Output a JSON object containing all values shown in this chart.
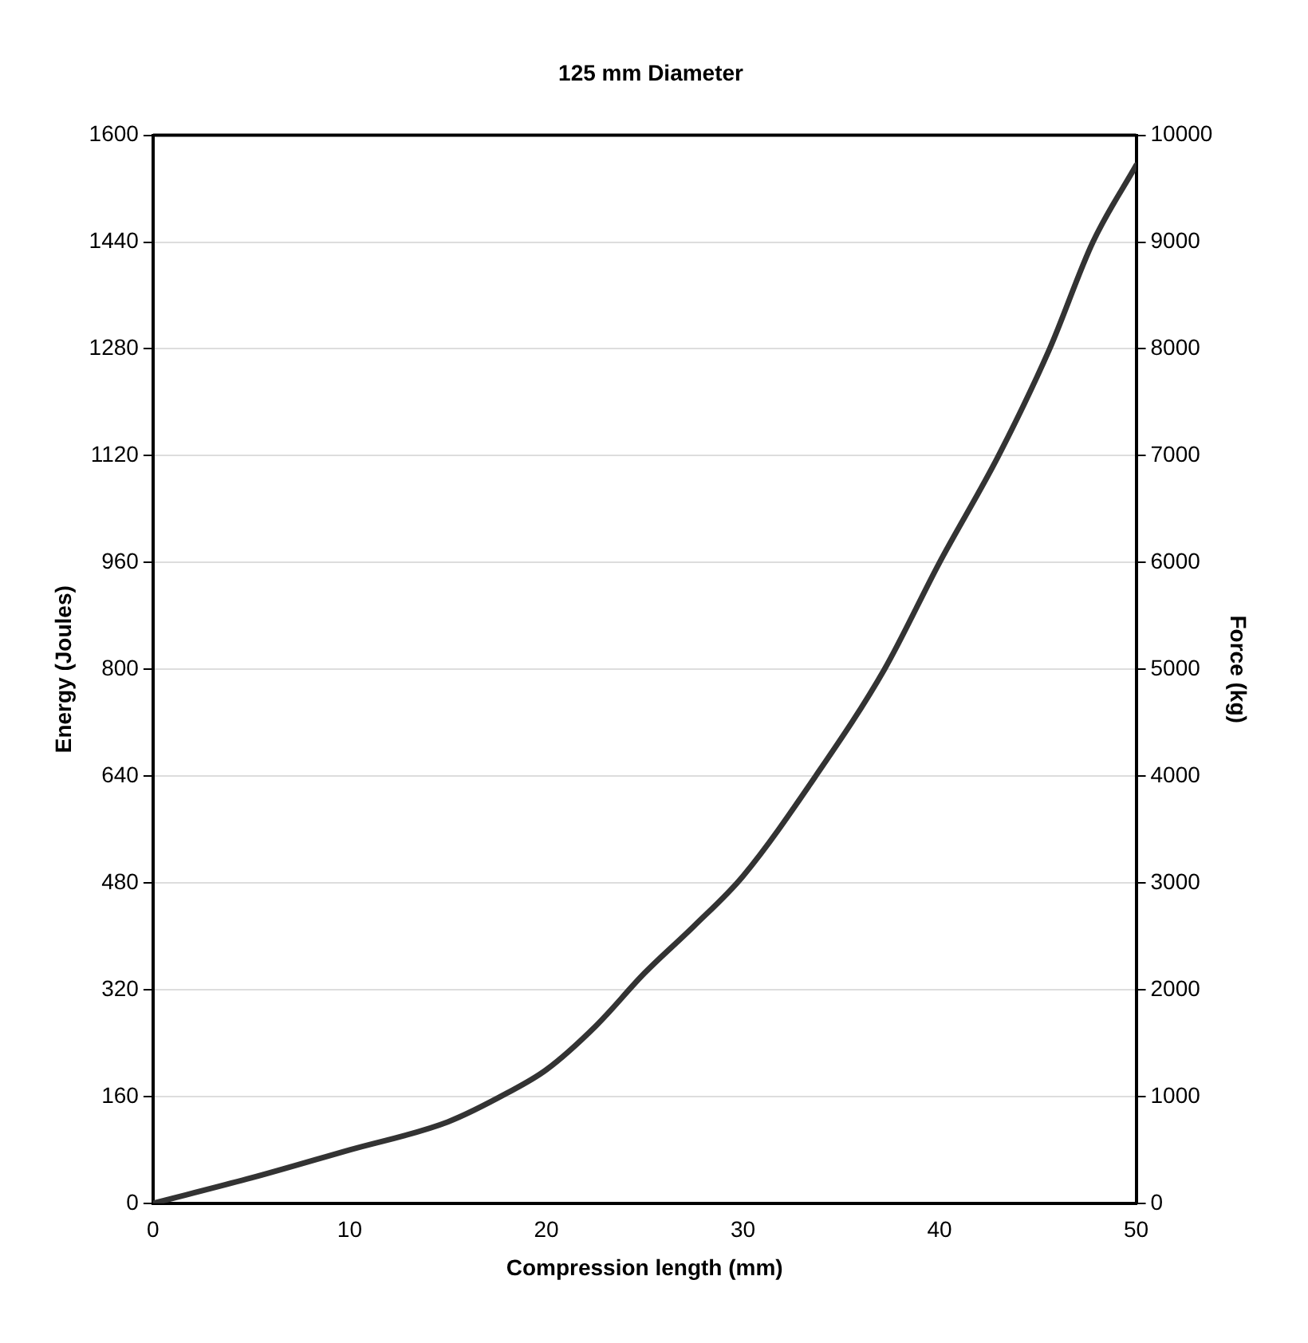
{
  "chart_data": {
    "type": "line",
    "title": "125 mm Diameter",
    "xlabel": "Compression length (mm)",
    "ylabel": "Energy (Joules)",
    "y2label": "Force (kg)",
    "x": [
      0,
      5,
      10,
      15,
      18,
      20,
      22.5,
      25,
      27.5,
      30,
      33.7,
      37.2,
      40,
      43,
      45.6,
      47.8,
      50
    ],
    "series": [
      {
        "color": "#333333",
        "values": [
          0,
          38,
          80,
          122,
          165,
          200,
          265,
          345,
          415,
          490,
          640,
          800,
          960,
          1120,
          1280,
          1440,
          1555
        ]
      }
    ],
    "xlim": [
      0,
      50
    ],
    "xticks": [
      0,
      10,
      20,
      30,
      40,
      50
    ],
    "ylim": [
      0,
      1600
    ],
    "yticks": [
      0,
      160,
      320,
      480,
      640,
      800,
      960,
      1120,
      1280,
      1440,
      1600
    ],
    "y2lim": [
      0,
      10000
    ],
    "y2ticks": [
      0,
      1000,
      2000,
      3000,
      4000,
      5000,
      6000,
      7000,
      8000,
      9000,
      10000
    ],
    "grid": "y",
    "legend": false,
    "marker": "none",
    "line_style": "solid"
  }
}
